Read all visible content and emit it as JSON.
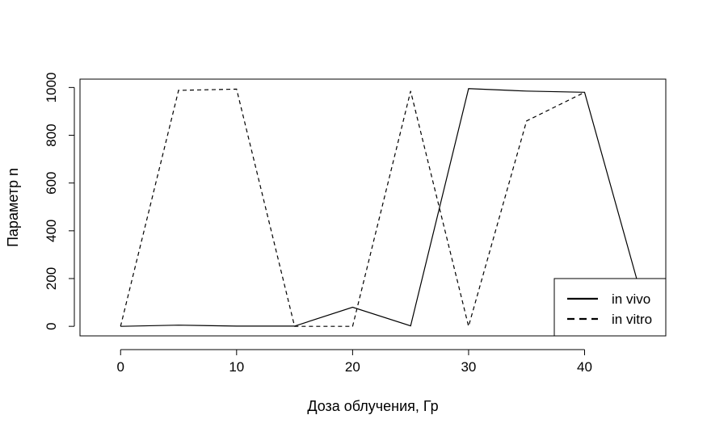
{
  "chart_data": {
    "type": "line",
    "title": "",
    "xlabel": "Доза облучения, Гр",
    "ylabel": "Параметр n",
    "xlim": [
      -3.5,
      47
    ],
    "ylim": [
      -40,
      1035
    ],
    "x_ticks": [
      0,
      10,
      20,
      30,
      40
    ],
    "y_ticks": [
      0,
      200,
      400,
      600,
      800,
      1000
    ],
    "grid": false,
    "legend_position": "bottom-right",
    "series": [
      {
        "name": "in vivo",
        "line_style": "solid",
        "x": [
          0,
          5,
          10,
          15,
          20,
          25,
          30,
          35,
          40,
          45
        ],
        "y": [
          0,
          5,
          1,
          1,
          80,
          2,
          995,
          985,
          980,
          110
        ]
      },
      {
        "name": "in vitro",
        "line_style": "dashed",
        "x": [
          0,
          5,
          10,
          15,
          20,
          25,
          30,
          35,
          40
        ],
        "y": [
          0,
          988,
          993,
          0,
          0,
          985,
          0,
          860,
          980
        ]
      }
    ]
  }
}
